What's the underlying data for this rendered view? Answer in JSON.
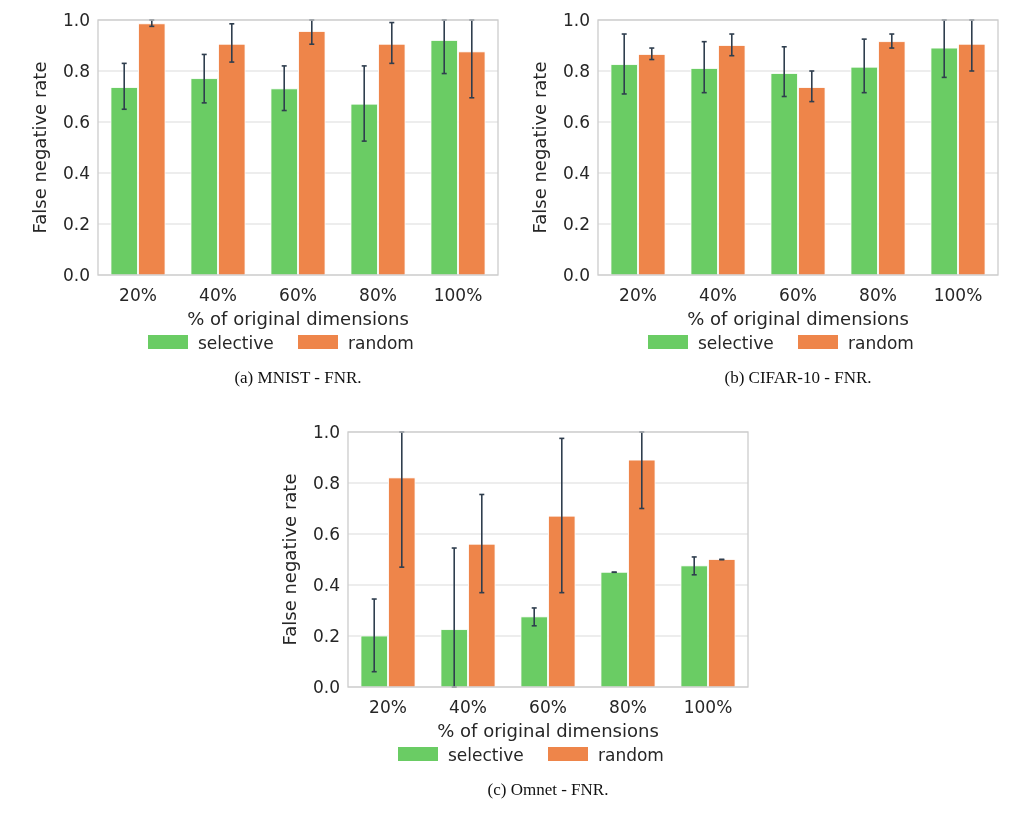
{
  "chart_data": [
    {
      "type": "bar",
      "categories": [
        "20%",
        "40%",
        "60%",
        "80%",
        "100%"
      ],
      "xlabel": "% of original dimensions",
      "ylabel": "False negative rate",
      "ylim": [
        0,
        1
      ],
      "yticks": [
        {
          "value": 0,
          "label": "0.0"
        },
        {
          "value": 0.2,
          "label": "0.2"
        },
        {
          "value": 0.4,
          "label": "0.4"
        },
        {
          "value": 0.6,
          "label": "0.6"
        },
        {
          "value": 0.8,
          "label": "0.8"
        },
        {
          "value": 1,
          "label": "1.0"
        }
      ],
      "grid": "y",
      "legend": "bottom",
      "annotations": [
        "(a) MNIST - FNR."
      ],
      "series": [
        {
          "name": "selective",
          "color": "#6acc64",
          "values": [
            0.735,
            0.77,
            0.73,
            0.67,
            0.92
          ],
          "errors": [
            [
              0.65,
              0.83
            ],
            [
              0.675,
              0.865
            ],
            [
              0.645,
              0.82
            ],
            [
              0.525,
              0.82
            ],
            [
              0.79,
              1.0
            ]
          ]
        },
        {
          "name": "random",
          "color": "#ee854a",
          "values": [
            0.985,
            0.905,
            0.955,
            0.905,
            0.875
          ],
          "errors": [
            [
              0.975,
              1.0
            ],
            [
              0.835,
              0.985
            ],
            [
              0.905,
              1.0
            ],
            [
              0.83,
              0.99
            ],
            [
              0.695,
              1.0
            ]
          ]
        }
      ]
    },
    {
      "type": "bar",
      "categories": [
        "20%",
        "40%",
        "60%",
        "80%",
        "100%"
      ],
      "xlabel": "% of original dimensions",
      "ylabel": "False negative rate",
      "ylim": [
        0,
        1
      ],
      "yticks": [
        {
          "value": 0,
          "label": "0.0"
        },
        {
          "value": 0.2,
          "label": "0.2"
        },
        {
          "value": 0.4,
          "label": "0.4"
        },
        {
          "value": 0.6,
          "label": "0.6"
        },
        {
          "value": 0.8,
          "label": "0.8"
        },
        {
          "value": 1,
          "label": "1.0"
        }
      ],
      "grid": "y",
      "legend": "bottom",
      "annotations": [
        "(b) CIFAR-10 - FNR."
      ],
      "series": [
        {
          "name": "selective",
          "color": "#6acc64",
          "values": [
            0.825,
            0.81,
            0.79,
            0.815,
            0.89
          ],
          "errors": [
            [
              0.71,
              0.945
            ],
            [
              0.715,
              0.915
            ],
            [
              0.7,
              0.895
            ],
            [
              0.715,
              0.925
            ],
            [
              0.775,
              1.0
            ]
          ]
        },
        {
          "name": "random",
          "color": "#ee854a",
          "values": [
            0.865,
            0.9,
            0.735,
            0.915,
            0.905
          ],
          "errors": [
            [
              0.845,
              0.89
            ],
            [
              0.86,
              0.945
            ],
            [
              0.68,
              0.8
            ],
            [
              0.89,
              0.945
            ],
            [
              0.8,
              1.0
            ]
          ]
        }
      ]
    },
    {
      "type": "bar",
      "categories": [
        "20%",
        "40%",
        "60%",
        "80%",
        "100%"
      ],
      "xlabel": "% of original dimensions",
      "ylabel": "False negative rate",
      "ylim": [
        0,
        1
      ],
      "yticks": [
        {
          "value": 0,
          "label": "0.0"
        },
        {
          "value": 0.2,
          "label": "0.2"
        },
        {
          "value": 0.4,
          "label": "0.4"
        },
        {
          "value": 0.6,
          "label": "0.6"
        },
        {
          "value": 0.8,
          "label": "0.8"
        },
        {
          "value": 1,
          "label": "1.0"
        }
      ],
      "grid": "y",
      "legend": "bottom",
      "annotations": [
        "(c) Omnet - FNR."
      ],
      "series": [
        {
          "name": "selective",
          "color": "#6acc64",
          "values": [
            0.2,
            0.225,
            0.275,
            0.45,
            0.475
          ],
          "errors": [
            [
              0.06,
              0.345
            ],
            [
              0.0,
              0.545
            ],
            [
              0.24,
              0.31
            ],
            [
              0.45,
              0.45
            ],
            [
              0.44,
              0.51
            ]
          ]
        },
        {
          "name": "random",
          "color": "#ee854a",
          "values": [
            0.82,
            0.56,
            0.67,
            0.89,
            0.5
          ],
          "errors": [
            [
              0.47,
              1.0
            ],
            [
              0.37,
              0.755
            ],
            [
              0.37,
              0.975
            ],
            [
              0.7,
              1.0
            ],
            [
              0.5,
              0.5
            ]
          ]
        }
      ]
    }
  ]
}
